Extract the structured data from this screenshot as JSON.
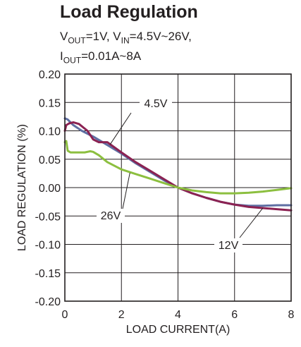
{
  "chart_data": {
    "type": "line",
    "title": "Load Regulation",
    "subtitle_parts": {
      "v": "V",
      "out": "OUT",
      "eq1": "=1V, V",
      "in": "IN",
      "eq2": "=4.5V~26V,",
      "i": "I",
      "out2": "OUT",
      "eq3": "=0.01A~8A"
    },
    "xlabel": "LOAD CURRENT(A)",
    "ylabel": "LOAD REGULATION (%)",
    "xlim": [
      0,
      8
    ],
    "ylim": [
      -0.2,
      0.2
    ],
    "x_ticks": [
      "0",
      "2",
      "4",
      "6",
      "8"
    ],
    "y_ticks": [
      "0.20",
      "0.15",
      "0.10",
      "0.05",
      "0.00",
      "-0.05",
      "-0.10",
      "-0.15",
      "-0.20"
    ],
    "grid": true,
    "series": [
      {
        "name": "4.5V",
        "color": "#5f6fa3",
        "x": [
          0,
          0.1,
          0.3,
          0.6,
          1.0,
          1.5,
          2.0,
          2.5,
          3.0,
          3.5,
          4.0,
          4.5,
          5.0,
          5.5,
          6.0,
          6.5,
          7.0,
          7.5,
          8.0
        ],
        "y": [
          0.122,
          0.12,
          0.11,
          0.1,
          0.09,
          0.075,
          0.06,
          0.043,
          0.028,
          0.013,
          0.0,
          -0.01,
          -0.018,
          -0.025,
          -0.03,
          -0.032,
          -0.032,
          -0.031,
          -0.031
        ]
      },
      {
        "name": "12V",
        "color": "#8b2252",
        "x": [
          0,
          0.05,
          0.15,
          0.3,
          0.5,
          0.8,
          1.0,
          1.2,
          1.5,
          2.0,
          2.5,
          3.0,
          3.5,
          4.0,
          4.5,
          5.0,
          5.5,
          6.0,
          6.5,
          7.0,
          7.5,
          8.0
        ],
        "y": [
          0.1,
          0.11,
          0.113,
          0.115,
          0.112,
          0.1,
          0.085,
          0.08,
          0.08,
          0.062,
          0.045,
          0.03,
          0.015,
          0.0,
          -0.01,
          -0.018,
          -0.025,
          -0.03,
          -0.034,
          -0.036,
          -0.038,
          -0.04
        ]
      },
      {
        "name": "26V",
        "color": "#8cbf3f",
        "x": [
          0,
          0.05,
          0.1,
          0.2,
          0.4,
          0.7,
          0.9,
          1.0,
          1.2,
          1.5,
          2.0,
          2.5,
          3.0,
          3.5,
          4.0,
          4.5,
          5.0,
          5.5,
          6.0,
          6.5,
          7.0,
          7.5,
          8.0
        ],
        "y": [
          0.08,
          0.082,
          0.065,
          0.062,
          0.062,
          0.062,
          0.064,
          0.063,
          0.057,
          0.045,
          0.032,
          0.024,
          0.016,
          0.008,
          0.0,
          -0.005,
          -0.008,
          -0.01,
          -0.01,
          -0.009,
          -0.007,
          -0.004,
          -0.001
        ]
      }
    ],
    "annotations": [
      {
        "text": "4.5V",
        "series": "4.5V"
      },
      {
        "text": "26V",
        "series": "26V"
      },
      {
        "text": "12V",
        "series": "12V"
      }
    ]
  }
}
